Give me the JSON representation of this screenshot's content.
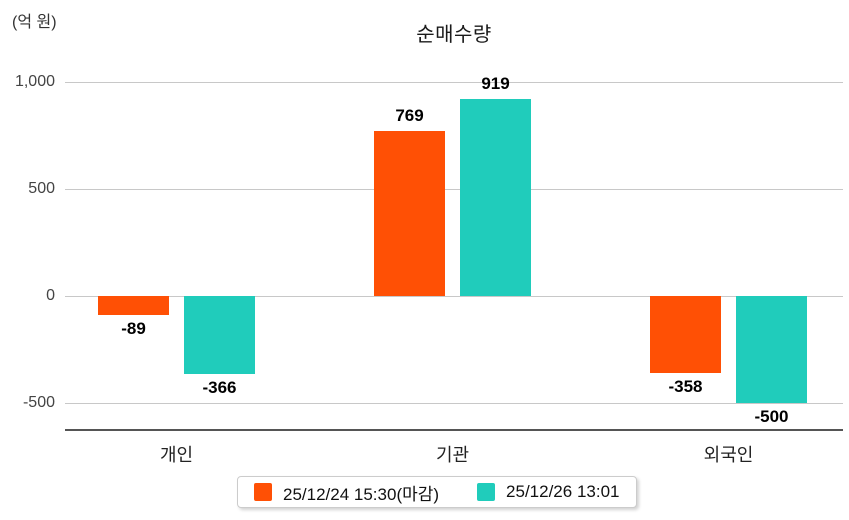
{
  "title": "순매수량",
  "unit_label": "(억 원)",
  "chart_data": {
    "type": "bar",
    "title": "순매수량",
    "ylabel": "(억 원)",
    "xlabel": "",
    "categories": [
      "개인",
      "기관",
      "외국인"
    ],
    "series": [
      {
        "name": "25/12/24 15:30(마감)",
        "color": "#FF5005",
        "values": [
          -89,
          769,
          -358
        ]
      },
      {
        "name": "25/12/26 13:01",
        "color": "#20CCBB",
        "values": [
          -366,
          919,
          -500
        ]
      }
    ],
    "y_ticks": [
      {
        "value": 1000,
        "label": "1,000"
      },
      {
        "value": 500,
        "label": "500"
      },
      {
        "value": 0,
        "label": "0"
      },
      {
        "value": -500,
        "label": "-500"
      }
    ],
    "ylim": [
      -650,
      1100
    ],
    "grid": true,
    "legend_position": "bottom",
    "value_labels_shown": true
  },
  "colors": {
    "series1": "#FF5005",
    "series2": "#20CCBB",
    "gridline": "#c8c8c8",
    "baseline": "#555555",
    "text": "#1a1a1a"
  }
}
